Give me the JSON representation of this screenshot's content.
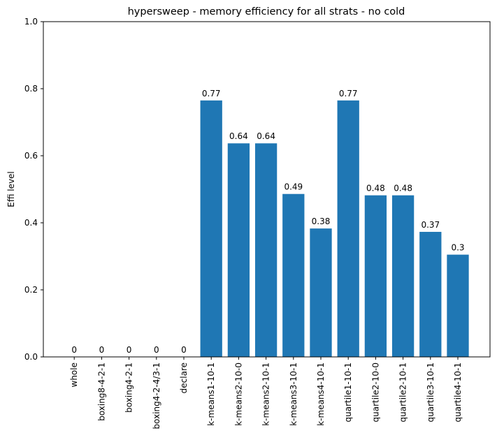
{
  "chart_data": {
    "type": "bar",
    "title": "hypersweep - memory efficiency for all strats - no cold",
    "xlabel": "",
    "ylabel": "Effi level",
    "ylim": [
      0,
      1
    ],
    "yticks": [
      "0.0",
      "0.2",
      "0.4",
      "0.6",
      "0.8",
      "1.0"
    ],
    "grid": false,
    "color": "#1f77b4",
    "categories": [
      "whole",
      "boxing8-4-2-1",
      "boxing4-2-1",
      "boxing4-2-4/3-1",
      "declare",
      "k-means1-10-1",
      "k-means2-10-0",
      "k-means2-10-1",
      "k-means3-10-1",
      "k-means4-10-1",
      "quartile1-10-1",
      "quartile2-10-0",
      "quartile2-10-1",
      "quartile3-10-1",
      "quartile4-10-1"
    ],
    "values": [
      0,
      0,
      0,
      0,
      0,
      0.765,
      0.637,
      0.637,
      0.486,
      0.383,
      0.765,
      0.482,
      0.482,
      0.373,
      0.305
    ],
    "value_labels": [
      "0",
      "0",
      "0",
      "0",
      "0",
      "0.77",
      "0.64",
      "0.64",
      "0.49",
      "0.38",
      "0.77",
      "0.48",
      "0.48",
      "0.37",
      "0.3"
    ]
  }
}
